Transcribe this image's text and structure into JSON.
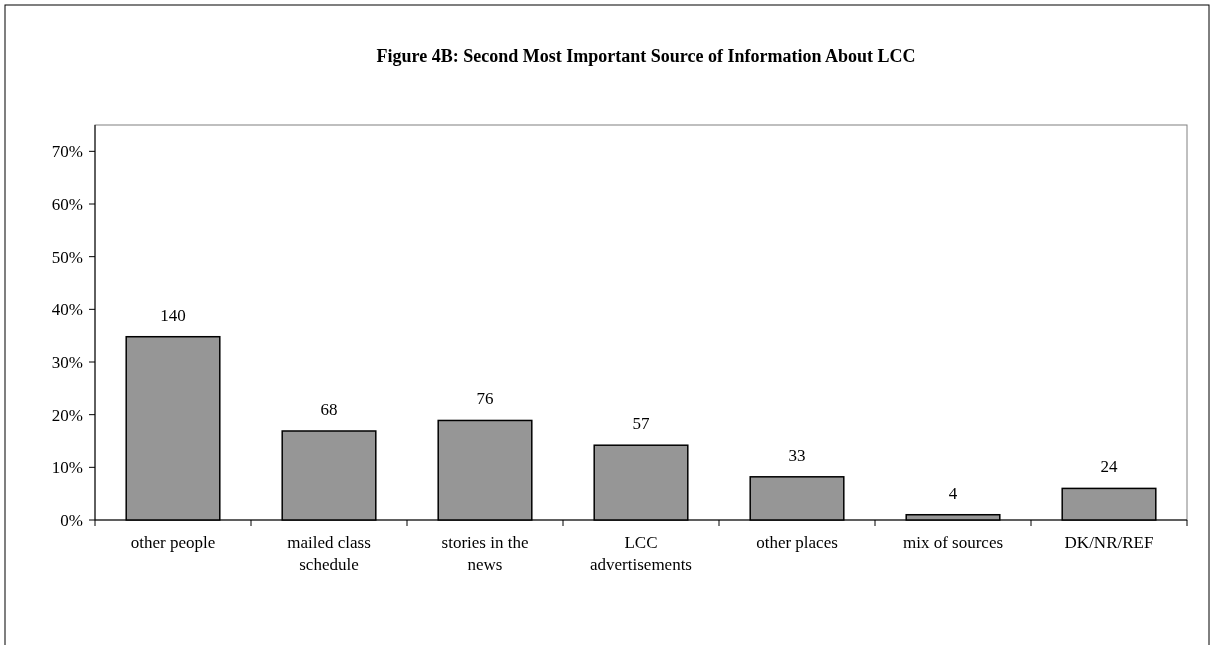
{
  "chart_data": {
    "type": "bar",
    "title": "Figure 4B:  Second Most Important Source of Information About LCC",
    "categories": [
      "other people",
      "mailed class schedule",
      "stories in the news",
      "LCC advertisements",
      "other places",
      "mix of sources",
      "DK/NR/REF"
    ],
    "values": [
      34.8,
      16.9,
      18.9,
      14.2,
      8.2,
      1.0,
      6.0
    ],
    "annotations": [
      {
        "text": "140",
        "x": "other people",
        "y": 34.8
      },
      {
        "text": "68",
        "x": "mailed class schedule",
        "y": 16.9
      },
      {
        "text": "76",
        "x": "stories in the news",
        "y": 18.9
      },
      {
        "text": "57",
        "x": "LCC advertisements",
        "y": 14.2
      },
      {
        "text": "33",
        "x": "other places",
        "y": 8.2
      },
      {
        "text": "4",
        "x": "mix of sources",
        "y": 1.0
      },
      {
        "text": "24",
        "x": "DK/NR/REF",
        "y": 6.0
      }
    ],
    "color": "#969696",
    "ylim": [
      0,
      75
    ],
    "yticks": [
      {
        "value": 0,
        "label": "0%"
      },
      {
        "value": 10,
        "label": "10%"
      },
      {
        "value": 20,
        "label": "20%"
      },
      {
        "value": 30,
        "label": "30%"
      },
      {
        "value": 40,
        "label": "40%"
      },
      {
        "value": 50,
        "label": "50%"
      },
      {
        "value": 60,
        "label": "60%"
      },
      {
        "value": 70,
        "label": "70%"
      }
    ],
    "grid": false
  }
}
